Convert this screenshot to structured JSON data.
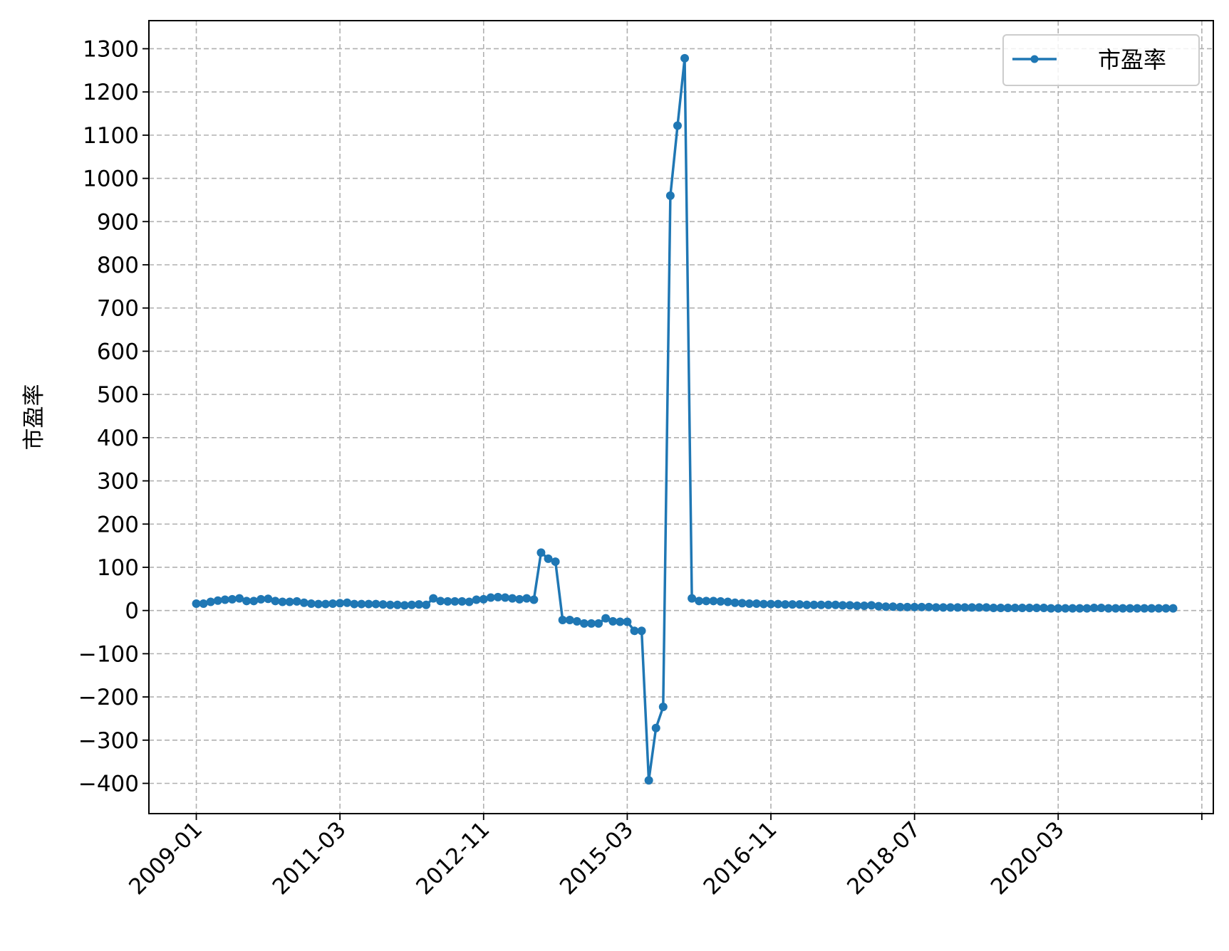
{
  "chart_data": {
    "type": "line",
    "title": "",
    "xlabel": "",
    "ylabel": "市盈率",
    "legend": {
      "placement": "top-right"
    },
    "grid": true,
    "line_color": "#1f77b4",
    "grid_color": "#b0b0b0",
    "ylim": [
      -470,
      1365
    ],
    "yticks": [
      -400,
      -300,
      -200,
      -100,
      0,
      100,
      200,
      300,
      400,
      500,
      600,
      700,
      800,
      900,
      1000,
      1100,
      1200,
      1300
    ],
    "ytick_labels": [
      "−400",
      "−300",
      "−200",
      "−100",
      "0",
      "100",
      "200",
      "300",
      "400",
      "500",
      "600",
      "700",
      "800",
      "900",
      "1000",
      "1100",
      "1200",
      "1300"
    ],
    "xticks": [
      0,
      20,
      40,
      60,
      80,
      100,
      120,
      140
    ],
    "xtick_labels": [
      "2009-01",
      "2011-03",
      "2012-11",
      "2015-03",
      "2016-11",
      "2018-07",
      "2020-03",
      ""
    ],
    "xlim": [
      -6.6,
      141.6
    ],
    "series": [
      {
        "name": "市盈率",
        "marker": "circle",
        "values": [
          16,
          16,
          20,
          23,
          25,
          26,
          28,
          22,
          22,
          26,
          27,
          22,
          20,
          20,
          21,
          18,
          16,
          15,
          15,
          16,
          17,
          18,
          15,
          15,
          15,
          15,
          14,
          13,
          13,
          12,
          13,
          14,
          13,
          28,
          22,
          21,
          21,
          21,
          20,
          25,
          26,
          30,
          31,
          30,
          28,
          26,
          28,
          25,
          134,
          120,
          113,
          -22,
          -22,
          -25,
          -30,
          -30,
          -30,
          -18,
          -25,
          -26,
          -26,
          -47,
          -47,
          -393,
          -272,
          -223,
          960,
          1122,
          1278,
          28,
          22,
          22,
          22,
          21,
          20,
          18,
          17,
          16,
          16,
          15,
          15,
          15,
          14,
          14,
          14,
          13,
          13,
          13,
          13,
          13,
          12,
          12,
          11,
          11,
          12,
          10,
          9,
          9,
          8,
          8,
          8,
          8,
          8,
          7,
          7,
          7,
          7,
          7,
          7,
          7,
          7,
          6,
          6,
          6,
          6,
          6,
          6,
          6,
          6,
          5,
          5,
          5,
          5,
          5,
          5,
          6,
          6,
          5,
          5,
          5,
          5,
          5,
          5,
          5,
          5,
          5,
          5
        ]
      }
    ]
  }
}
